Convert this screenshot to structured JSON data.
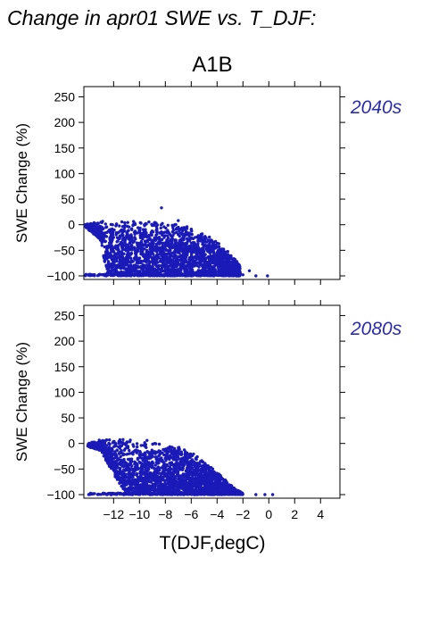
{
  "title": "Change in apr01 SWE vs. T_DJF:",
  "colors": {
    "points": "#1a1ab8",
    "period_label": "#2a2ab0",
    "axis": "#000000"
  },
  "chart_data": {
    "type": "scatter",
    "scenario": "A1B",
    "xlabel": "T(DJF,degC)",
    "xlim": [
      -14.3,
      5.5
    ],
    "xticks": [
      -12,
      -10,
      -8,
      -6,
      -4,
      -2,
      0,
      2,
      4
    ],
    "xtick_labels": [
      "−12",
      "−10",
      "−8",
      "−6",
      "−4",
      "−2",
      "0",
      "2",
      "4"
    ],
    "panels": [
      {
        "period": "2040s",
        "ylabel": "SWE Change (%)",
        "ylim": [
          -107,
          270
        ],
        "yticks": [
          250,
          200,
          150,
          100,
          50,
          0,
          -50,
          -100
        ],
        "ytick_labels": [
          "250",
          "200",
          "150",
          "100",
          "50",
          "0",
          "−50",
          "−100"
        ],
        "envelope": [
          [
            -14.2,
            2,
            -4
          ],
          [
            -13.0,
            8,
            -30
          ],
          [
            -12.5,
            10,
            -100
          ],
          [
            -11.0,
            8,
            -100
          ],
          [
            -10.0,
            8,
            -100
          ],
          [
            -8.0,
            5,
            -100
          ],
          [
            -7.0,
            2,
            -100
          ],
          [
            -6.0,
            -6,
            -100
          ],
          [
            -5.0,
            -18,
            -100
          ],
          [
            -4.0,
            -30,
            -100
          ],
          [
            -3.0,
            -55,
            -100
          ],
          [
            -2.2,
            -80,
            -100
          ]
        ],
        "n_points": 2600,
        "outliers": [
          [
            -8.3,
            33
          ],
          [
            -7.0,
            8
          ],
          [
            -2.0,
            -98
          ],
          [
            -1.0,
            -100
          ],
          [
            -0.1,
            -100
          ],
          [
            -1.5,
            -90
          ],
          [
            -2.8,
            -75
          ]
        ]
      },
      {
        "period": "2080s",
        "ylabel": "SWE Change (%)",
        "ylim": [
          -107,
          270
        ],
        "yticks": [
          250,
          200,
          150,
          100,
          50,
          0,
          -50,
          -100
        ],
        "ytick_labels": [
          "250",
          "200",
          "150",
          "100",
          "50",
          "0",
          "−50",
          "−100"
        ],
        "envelope": [
          [
            -14.0,
            0,
            -6
          ],
          [
            -13.0,
            8,
            -15
          ],
          [
            -12.0,
            10,
            -60
          ],
          [
            -11.0,
            10,
            -100
          ],
          [
            -10.0,
            8,
            -100
          ],
          [
            -9.0,
            5,
            -100
          ],
          [
            -8.0,
            0,
            -100
          ],
          [
            -7.0,
            -5,
            -100
          ],
          [
            -6.0,
            -15,
            -100
          ],
          [
            -5.0,
            -35,
            -100
          ],
          [
            -4.0,
            -55,
            -100
          ],
          [
            -3.0,
            -80,
            -100
          ],
          [
            -2.0,
            -98,
            -100
          ]
        ],
        "n_points": 2600,
        "outliers": [
          [
            -12.5,
            -100
          ],
          [
            -12.2,
            -100
          ],
          [
            -1.0,
            -100
          ],
          [
            -0.3,
            -100
          ],
          [
            0.3,
            -100
          ],
          [
            -11.0,
            -80
          ]
        ]
      }
    ]
  }
}
